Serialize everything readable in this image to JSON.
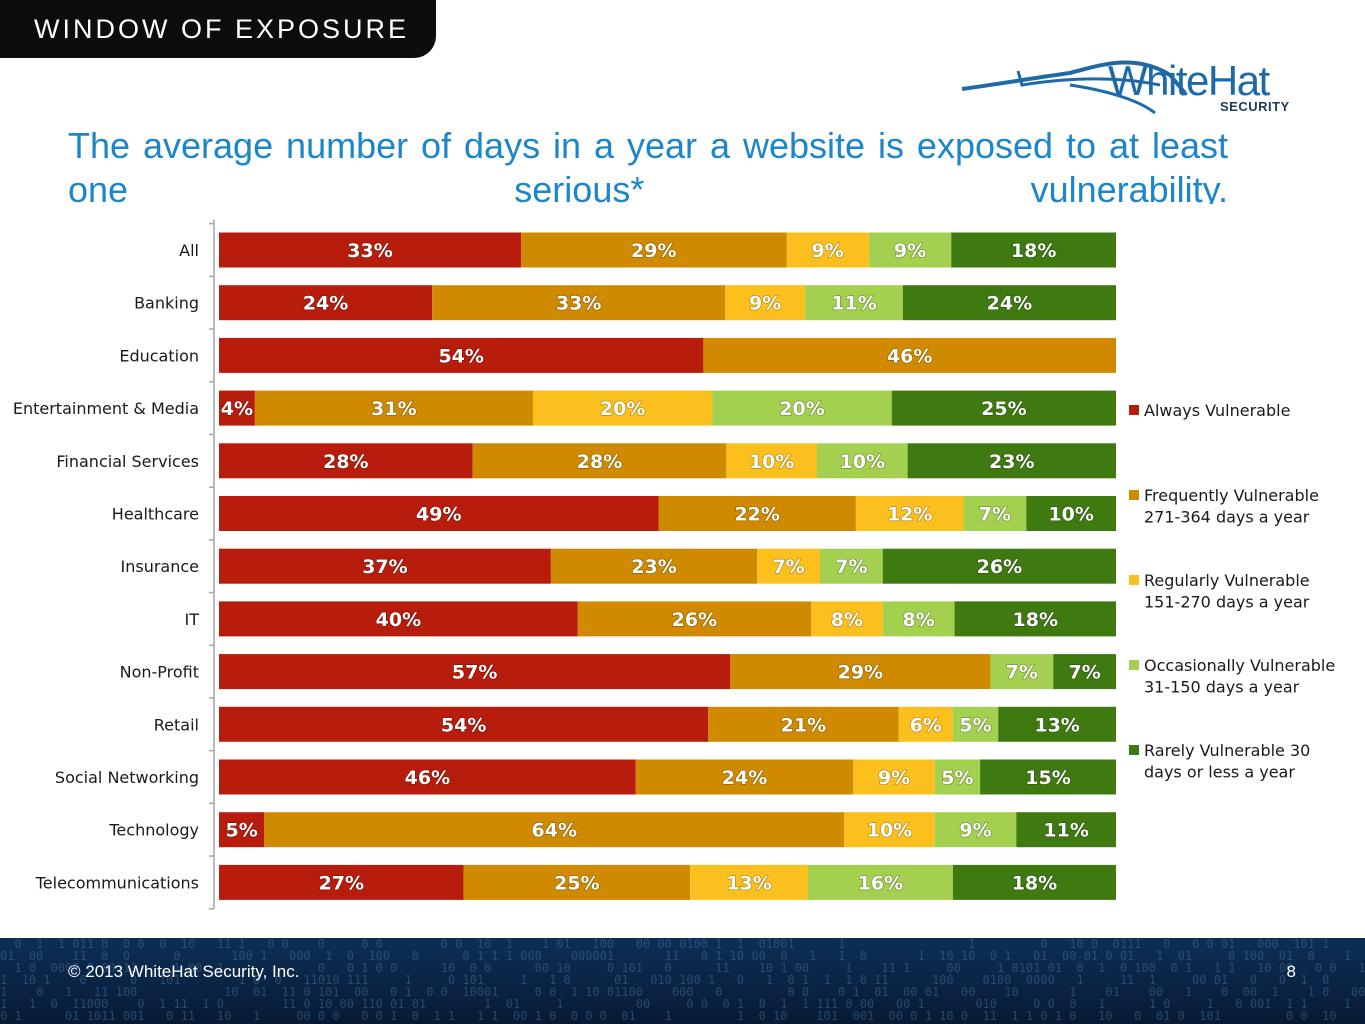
{
  "header": {
    "section_label": "WINDOW OF EXPOSURE"
  },
  "logo": {
    "brand": "WhiteHat",
    "subbrand": "SECURITY"
  },
  "slide": {
    "title": "The average number of days in a year a website is exposed to at least one serious* vulnerability."
  },
  "footer": {
    "copyright": "© 2013 WhiteHat Security, Inc.",
    "page_number": "8"
  },
  "colors": {
    "always": "#b71c0c",
    "frequently": "#d08a00",
    "regularly": "#fcc01e",
    "occasionally": "#a4d04f",
    "rarely": "#3f7a11"
  },
  "chart_data": {
    "type": "bar",
    "orientation": "horizontal",
    "stacked": true,
    "normalized": true,
    "categories": [
      "All",
      "Banking",
      "Education",
      "Entertainment & Media",
      "Financial Services",
      "Healthcare",
      "Insurance",
      "IT",
      "Non-Profit",
      "Retail",
      "Social Networking",
      "Technology",
      "Telecommunications"
    ],
    "series": [
      {
        "name": "Always Vulnerable",
        "color_key": "always",
        "values": [
          33,
          24,
          54,
          4,
          28,
          49,
          37,
          40,
          57,
          54,
          46,
          5,
          27
        ]
      },
      {
        "name": "Frequently Vulnerable 271-364 days a year",
        "color_key": "frequently",
        "values": [
          29,
          33,
          46,
          31,
          28,
          22,
          23,
          26,
          29,
          21,
          24,
          64,
          25
        ]
      },
      {
        "name": "Regularly Vulnerable 151-270 days a year",
        "color_key": "regularly",
        "values": [
          9,
          9,
          0,
          20,
          10,
          12,
          7,
          8,
          0,
          6,
          9,
          10,
          13
        ]
      },
      {
        "name": "Occasionally Vulnerable 31-150 days a year",
        "color_key": "occasionally",
        "values": [
          9,
          11,
          0,
          20,
          10,
          7,
          7,
          8,
          7,
          5,
          5,
          9,
          16
        ]
      },
      {
        "name": "Rarely Vulnerable 30 days or less a year",
        "color_key": "rarely",
        "values": [
          18,
          24,
          0,
          25,
          23,
          10,
          26,
          18,
          7,
          13,
          15,
          11,
          18
        ]
      }
    ],
    "legend_lines": [
      [
        "Always Vulnerable"
      ],
      [
        "Frequently Vulnerable",
        "271-364 days a year"
      ],
      [
        "Regularly Vulnerable",
        "151-270 days a year"
      ],
      [
        "Occasionally Vulnerable",
        "31-150 days a year"
      ],
      [
        "Rarely Vulnerable 30",
        "days or less a year"
      ]
    ],
    "value_suffix": "%",
    "legend_position": "right",
    "grid": false
  }
}
